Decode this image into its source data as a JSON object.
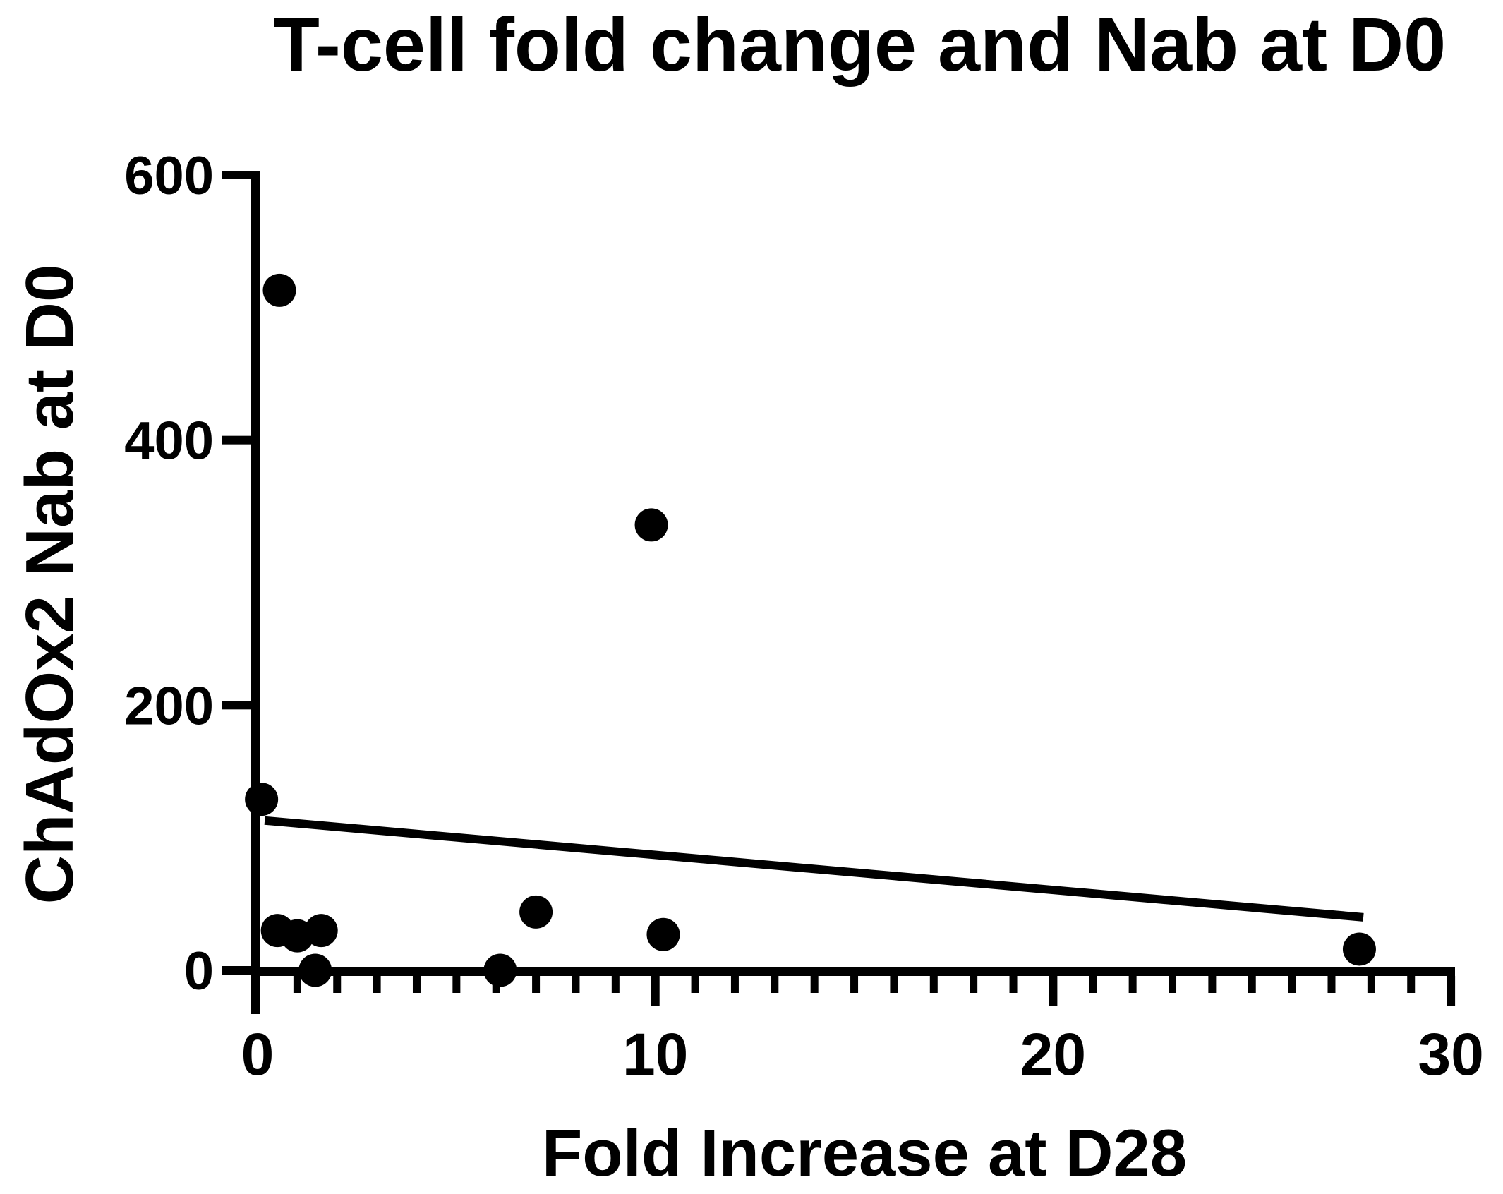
{
  "chart_data": {
    "type": "scatter",
    "title": "T-cell fold change and Nab at D0",
    "xlabel": "Fold Increase at D28",
    "ylabel": "ChAdOx2 Nab at D0",
    "xlim": [
      0,
      30
    ],
    "ylim": [
      0,
      600
    ],
    "x_major_ticks": [
      0,
      10,
      20,
      30
    ],
    "x_minor_tick_step": 1,
    "y_major_ticks": [
      0,
      200,
      400,
      600
    ],
    "grid": false,
    "legend": null,
    "marker_color": "#000000",
    "line_color": "#000000",
    "background_color": "#ffffff",
    "points": [
      {
        "x": 0.1,
        "y": 129
      },
      {
        "x": 0.5,
        "y": 30
      },
      {
        "x": 0.55,
        "y": 513
      },
      {
        "x": 1.0,
        "y": 26
      },
      {
        "x": 1.45,
        "y": 0
      },
      {
        "x": 1.6,
        "y": 30
      },
      {
        "x": 6.1,
        "y": 0
      },
      {
        "x": 7.0,
        "y": 44
      },
      {
        "x": 9.9,
        "y": 336
      },
      {
        "x": 10.2,
        "y": 27
      },
      {
        "x": 27.7,
        "y": 16
      }
    ],
    "regression_line": {
      "x1": 0.18,
      "y1": 113,
      "x2": 27.8,
      "y2": 40
    }
  }
}
